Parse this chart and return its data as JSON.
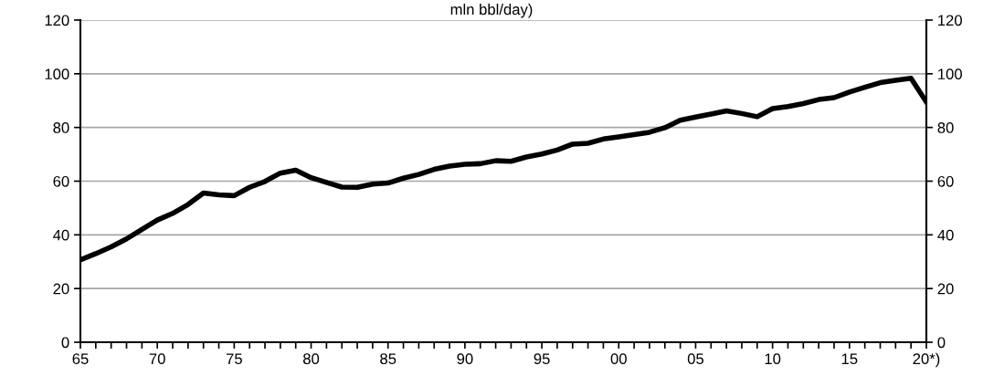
{
  "chart_data": {
    "type": "line",
    "title": "mln bbl/day)",
    "categories": [
      "65",
      null,
      null,
      null,
      null,
      "70",
      null,
      null,
      null,
      null,
      "75",
      null,
      null,
      null,
      null,
      "80",
      null,
      null,
      null,
      null,
      "85",
      null,
      null,
      null,
      null,
      "90",
      null,
      null,
      null,
      null,
      "95",
      null,
      null,
      null,
      null,
      "00",
      null,
      null,
      null,
      null,
      "05",
      null,
      null,
      null,
      null,
      "10",
      null,
      null,
      null,
      null,
      "15",
      null,
      null,
      null,
      null,
      "20*)"
    ],
    "series": [
      {
        "color": "#000000",
        "values": [
          30.7,
          33,
          35.5,
          38.5,
          42,
          45.5,
          48,
          51.3,
          55.6,
          54.9,
          54.6,
          57.7,
          59.9,
          63,
          64.1,
          61.3,
          59.5,
          57.8,
          57.7,
          58.9,
          59.3,
          61.1,
          62.5,
          64.4,
          65.6,
          66.3,
          66.5,
          67.6,
          67.4,
          69,
          70.1,
          71.6,
          73.8,
          74.1,
          75.7,
          76.5,
          77.3,
          78.2,
          79.9,
          82.7,
          83.9,
          85,
          86.2,
          85.2,
          84,
          87,
          87.8,
          88.9,
          90.4,
          91.1,
          93.2,
          95,
          96.7,
          97.6,
          98.3,
          89.5
        ]
      }
    ],
    "ylim": [
      0,
      120
    ],
    "yticks": [
      0,
      20,
      40,
      60,
      80,
      100,
      120
    ],
    "y2lim": [
      0,
      120
    ],
    "y2ticks": [
      0,
      20,
      40,
      60,
      80,
      100,
      120
    ],
    "grid": "y",
    "line_style": "solid",
    "marker": "none",
    "legend": false
  }
}
